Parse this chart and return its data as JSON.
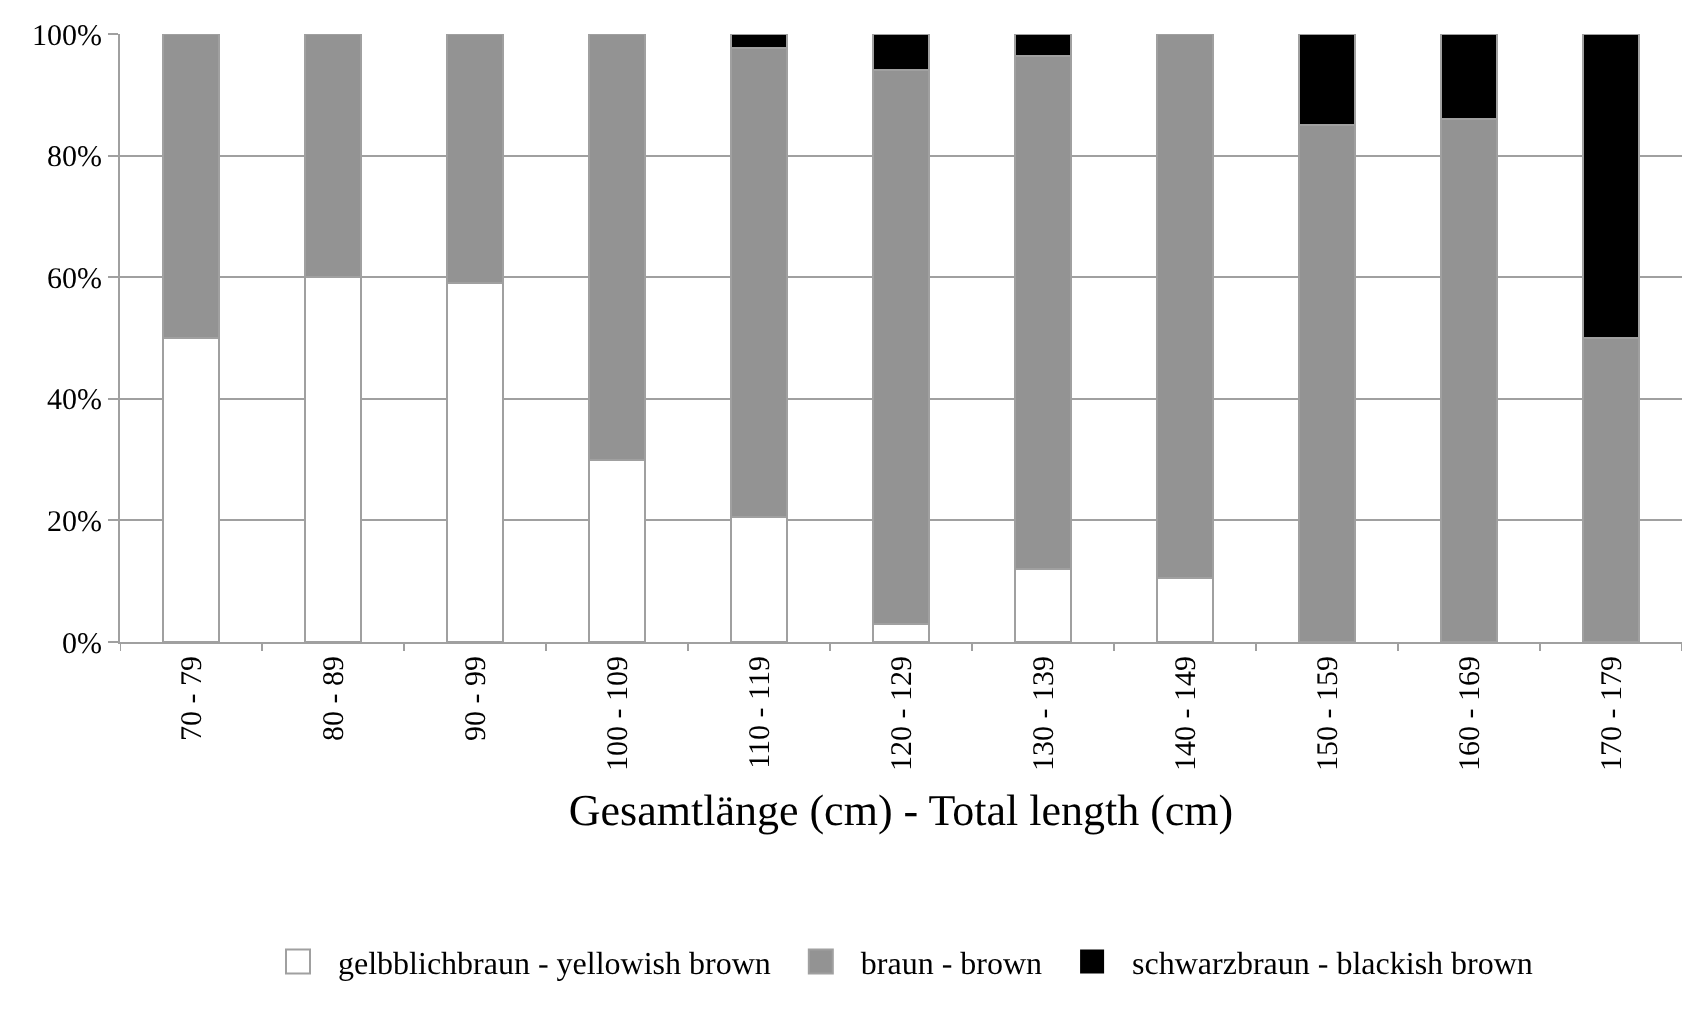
{
  "chart_data": {
    "type": "bar",
    "stacked": true,
    "xlabel": "Gesamtlänge (cm) - Total length (cm)",
    "categories": [
      "70 - 79",
      "80 - 89",
      "90 - 99",
      "100 - 109",
      "110 - 119",
      "120 - 129",
      "130 - 139",
      "140 - 149",
      "150 - 159",
      "160 - 169",
      "170 - 179"
    ],
    "series": [
      {
        "name": "gelbblichbraun - yellowish brown",
        "color": "#ffffff",
        "values": [
          50,
          60,
          59,
          30,
          20.5,
          3,
          12,
          10.5,
          0,
          0,
          0
        ]
      },
      {
        "name": "braun - brown",
        "color": "#939393",
        "values": [
          50,
          40,
          41,
          70,
          77.2,
          91,
          84.4,
          89.5,
          85,
          86,
          50
        ]
      },
      {
        "name": "schwarzbraun - blackish brown",
        "color": "#000000",
        "values": [
          0,
          0,
          0,
          0,
          2.3,
          6,
          3.6,
          0,
          15,
          14,
          50
        ]
      }
    ],
    "ylim": [
      0,
      100
    ],
    "yticks": [
      {
        "value": 0,
        "label": "0%"
      },
      {
        "value": 20,
        "label": "20%"
      },
      {
        "value": 40,
        "label": "40%"
      },
      {
        "value": 60,
        "label": "60%"
      },
      {
        "value": 80,
        "label": "80%"
      },
      {
        "value": 100,
        "label": "100%"
      }
    ],
    "grid": "y",
    "legend": "bottom"
  }
}
